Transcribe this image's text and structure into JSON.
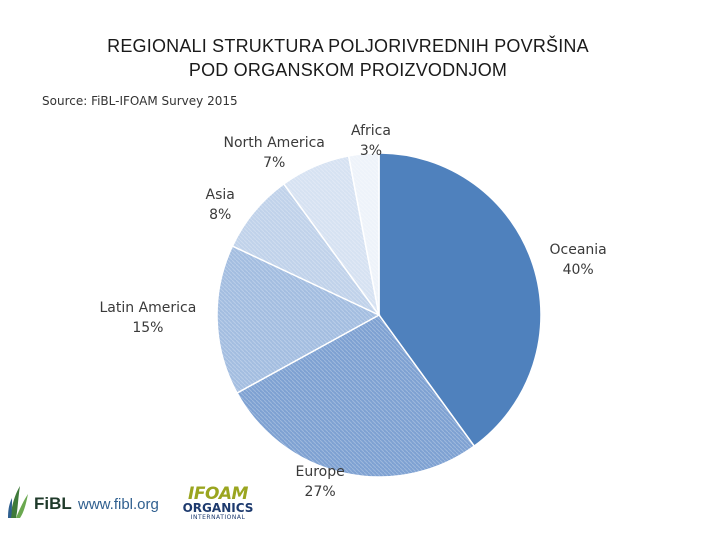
{
  "title_line1": "REGIONALI STRUKTURA POLJORIVREDNIH POVRŠINA",
  "title_line2": "POD ORGANSKOM PROIZVODNJOM",
  "source": "Source: FiBL-IFOAM Survey 2015",
  "chart_data": {
    "type": "pie",
    "categories": [
      "Oceania",
      "Europe",
      "Latin America",
      "Asia",
      "North America",
      "Africa"
    ],
    "values": [
      40,
      27,
      15,
      8,
      7,
      3
    ],
    "labels": [
      "40%",
      "27%",
      "15%",
      "8%",
      "7%",
      "3%"
    ],
    "colors": [
      "#4f81bd",
      "#7ea1d2",
      "#a3bde0",
      "#c0d2ea",
      "#d6e2f2",
      "#eef3fa"
    ],
    "start_angle_deg": 0,
    "direction": "clockwise"
  },
  "footer": {
    "fibl_logo_text": "FiBL",
    "fibl_url": "www.fibl.org",
    "ifoam_logo_top": "IFOAM",
    "ifoam_logo_mid": "ORGANICS",
    "ifoam_logo_bottom": "INTERNATIONAL"
  }
}
